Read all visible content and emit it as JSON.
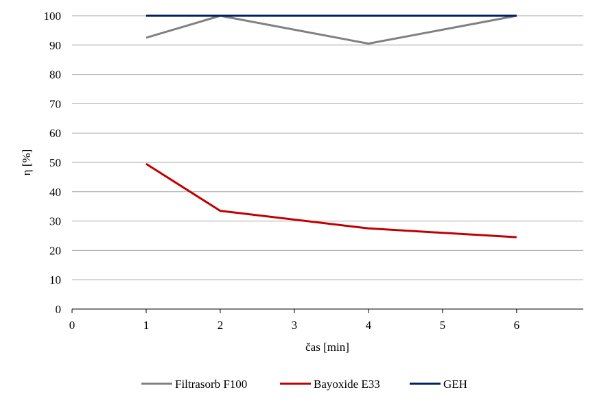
{
  "chart_data": {
    "type": "line",
    "title": "",
    "xlabel": "čas [min]",
    "ylabel": "η [%]",
    "x_ticks": [
      "0",
      "1",
      "2",
      "3",
      "4",
      "5",
      "6"
    ],
    "y_ticks": [
      "0",
      "10",
      "20",
      "30",
      "40",
      "50",
      "60",
      "70",
      "80",
      "90",
      "100"
    ],
    "xlim": [
      0,
      6.9
    ],
    "ylim": [
      0,
      100
    ],
    "grid": "horizontal",
    "legend_position": "bottom",
    "series": [
      {
        "name": "Filtrasorb F100",
        "color": "#808080",
        "x": [
          1,
          2,
          4,
          6
        ],
        "y": [
          92.5,
          100,
          90.5,
          100
        ]
      },
      {
        "name": "Bayoxide E33",
        "color": "#C00000",
        "x": [
          1,
          2,
          4,
          6
        ],
        "y": [
          49.5,
          33.5,
          27.5,
          24.5
        ]
      },
      {
        "name": "GEH",
        "color": "#002060",
        "x": [
          1,
          2,
          4,
          6
        ],
        "y": [
          100,
          100,
          100,
          100
        ]
      }
    ]
  }
}
